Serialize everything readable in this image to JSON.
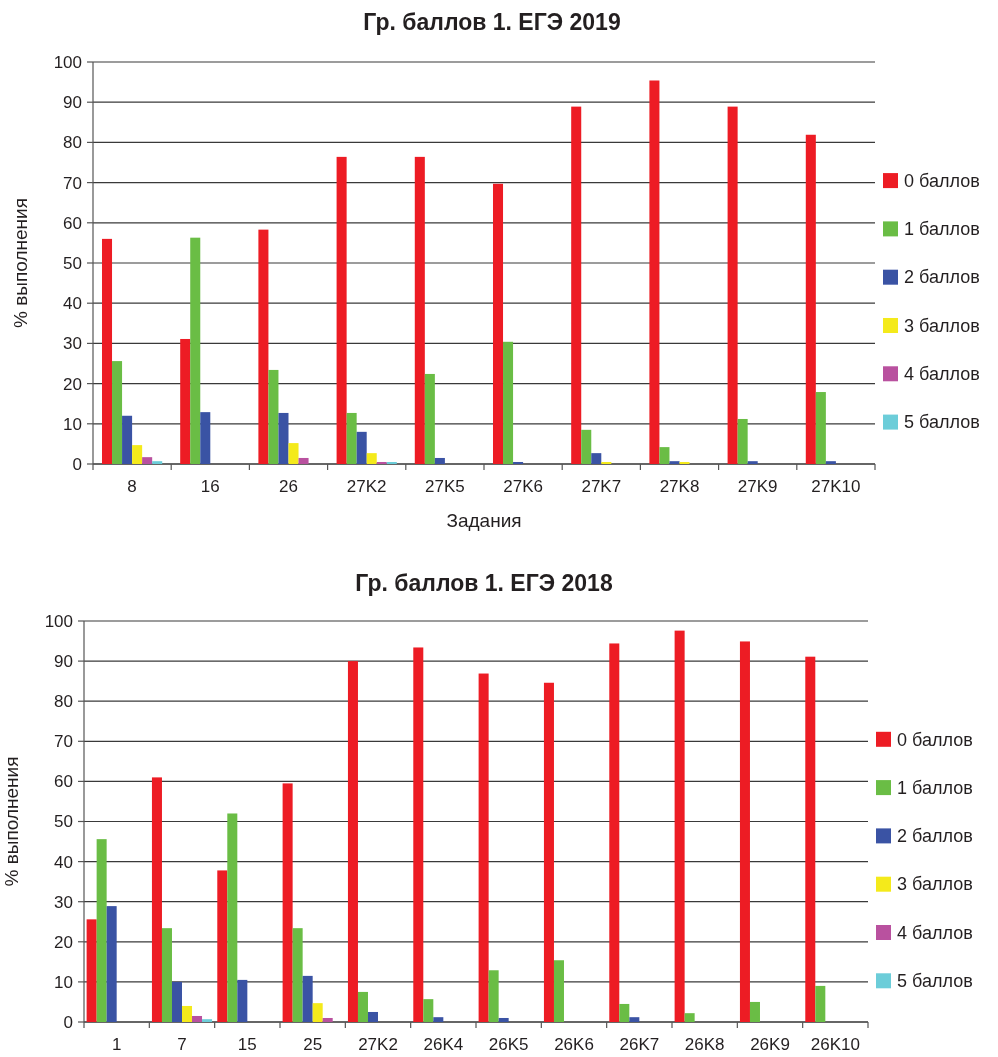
{
  "chart_data": [
    {
      "type": "bar",
      "title": "Гр. баллов 1. ЕГЭ 2019",
      "xlabel": "Задания",
      "ylabel": "% выполнения",
      "categories": [
        "8",
        "16",
        "26",
        "27K2",
        "27K5",
        "27K6",
        "27K7",
        "27K8",
        "27K9",
        "27K10"
      ],
      "series": [
        {
          "name": "0 баллов",
          "color": "#ed1c24",
          "values": [
            56.0,
            31.1,
            58.3,
            76.4,
            76.4,
            69.7,
            88.9,
            95.4,
            88.9,
            81.9
          ]
        },
        {
          "name": "1 баллов",
          "color": "#6abd45",
          "values": [
            25.6,
            56.3,
            23.4,
            12.7,
            22.4,
            30.4,
            8.5,
            4.2,
            11.2,
            17.9
          ]
        },
        {
          "name": "2 баллов",
          "color": "#3a53a4",
          "values": [
            12.0,
            12.9,
            12.7,
            8.0,
            1.5,
            0.5,
            2.7,
            0.7,
            0.7,
            0.7
          ]
        },
        {
          "name": "3 баллов",
          "color": "#f4ea1b",
          "values": [
            4.7,
            null,
            5.2,
            2.7,
            null,
            null,
            0.5,
            0.5,
            null,
            null
          ]
        },
        {
          "name": "4 баллов",
          "color": "#b9519f",
          "values": [
            1.7,
            null,
            1.5,
            0.5,
            null,
            null,
            null,
            null,
            null,
            null
          ]
        },
        {
          "name": "5 баллов",
          "color": "#6ccdd9",
          "values": [
            0.7,
            null,
            null,
            0.5,
            null,
            null,
            null,
            null,
            null,
            null
          ]
        }
      ],
      "ylim": [
        0,
        100
      ],
      "yticks": [
        0,
        10,
        20,
        30,
        40,
        50,
        60,
        70,
        80,
        90,
        100
      ],
      "grid": "y",
      "legend": "right"
    },
    {
      "type": "bar",
      "title": "Гр. баллов 1. ЕГЭ 2018",
      "ylabel": "% выполнения",
      "categories": [
        "1",
        "7",
        "15",
        "25",
        "27K2",
        "26K4",
        "26K5",
        "26K6",
        "26K7",
        "26K8",
        "26K9",
        "26K10"
      ],
      "series": [
        {
          "name": "0 баллов",
          "color": "#ed1c24",
          "values": [
            25.6,
            61.0,
            37.8,
            59.5,
            90.0,
            93.4,
            86.9,
            84.6,
            94.4,
            97.6,
            94.9,
            91.1
          ]
        },
        {
          "name": "1 баллов",
          "color": "#6abd45",
          "values": [
            45.6,
            23.4,
            52.0,
            23.4,
            7.5,
            5.7,
            12.9,
            15.4,
            4.5,
            2.2,
            5.0,
            9.0
          ]
        },
        {
          "name": "2 баллов",
          "color": "#3a53a4",
          "values": [
            28.9,
            10.0,
            10.5,
            11.5,
            2.5,
            1.2,
            1.0,
            null,
            1.2,
            null,
            null,
            null
          ]
        },
        {
          "name": "3 баллов",
          "color": "#f4ea1b",
          "values": [
            null,
            4.0,
            null,
            4.7,
            null,
            null,
            null,
            null,
            null,
            null,
            null,
            null
          ]
        },
        {
          "name": "4 баллов",
          "color": "#b9519f",
          "values": [
            null,
            1.5,
            null,
            1.0,
            null,
            null,
            null,
            null,
            null,
            null,
            null,
            null
          ]
        },
        {
          "name": "5 баллов",
          "color": "#6ccdd9",
          "values": [
            null,
            0.7,
            null,
            null,
            null,
            null,
            null,
            null,
            null,
            null,
            null,
            null
          ]
        }
      ],
      "ylim": [
        0,
        100
      ],
      "yticks": [
        0,
        10,
        20,
        30,
        40,
        50,
        60,
        70,
        80,
        90,
        100
      ],
      "grid": "y",
      "legend": "right"
    }
  ]
}
